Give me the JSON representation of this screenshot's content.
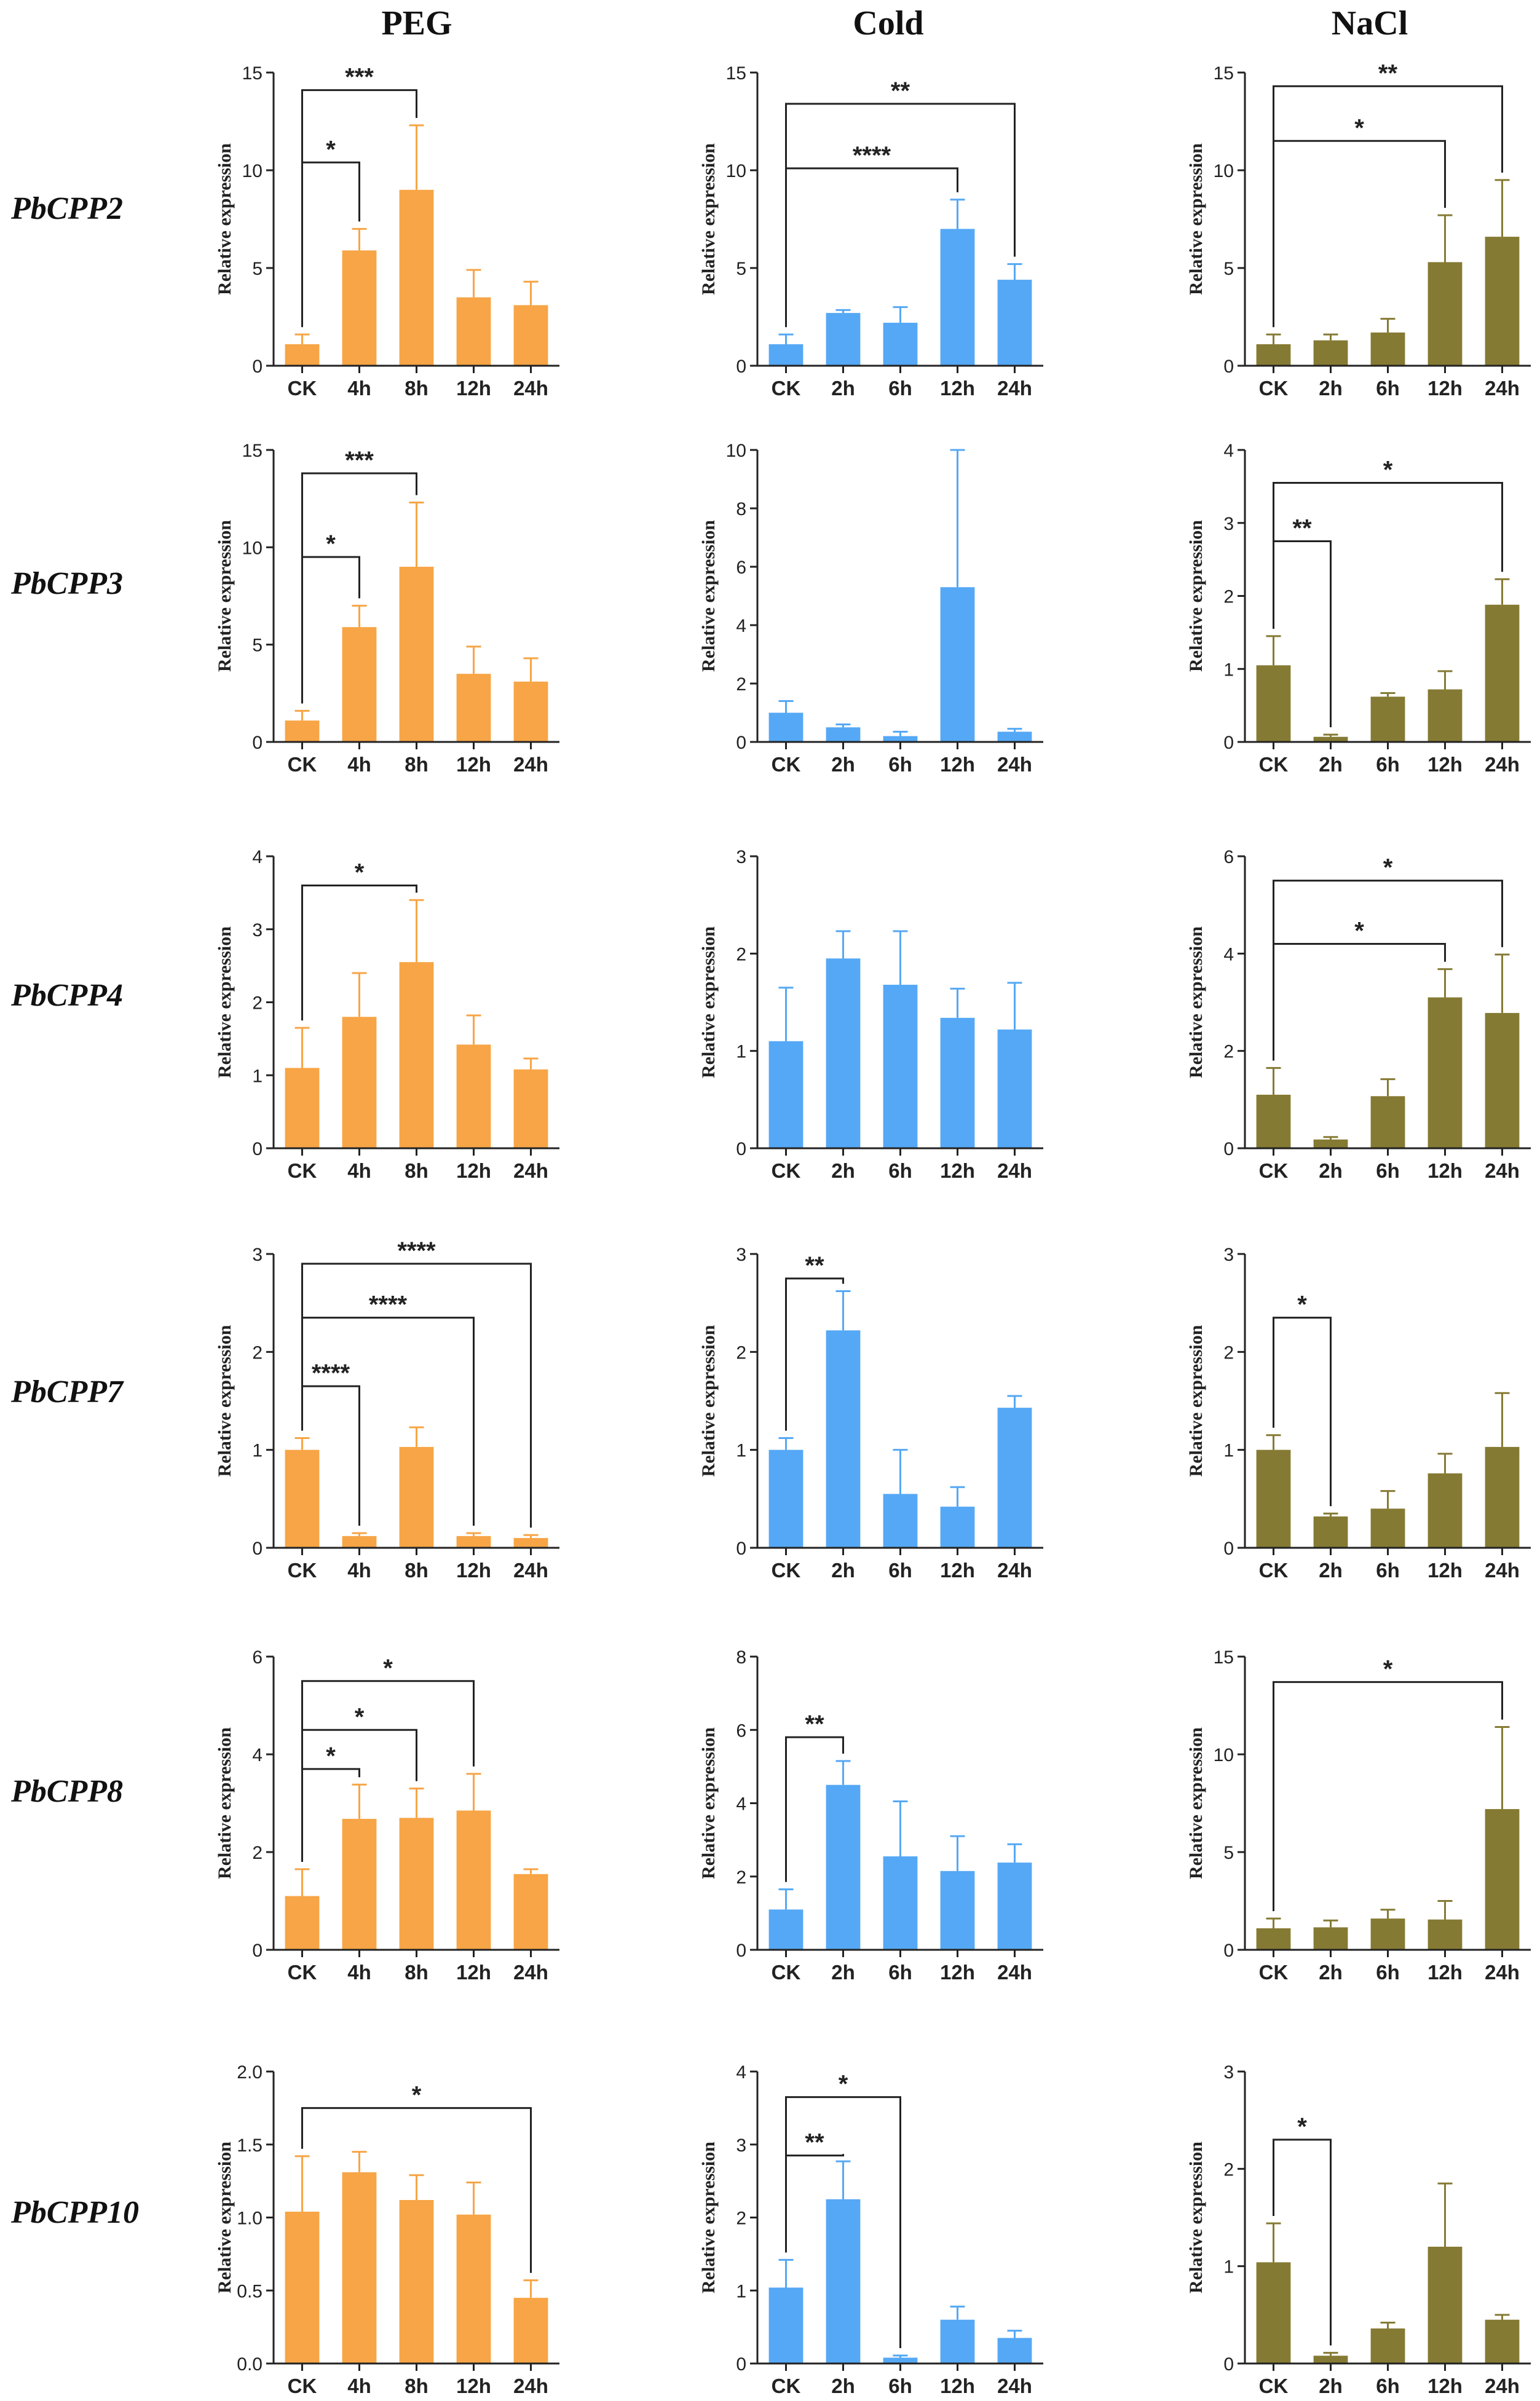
{
  "columns": [
    "PEG",
    "Cold",
    "NaCl"
  ],
  "genes": [
    "PbCPP2",
    "PbCPP3",
    "PbCPP4",
    "PbCPP7",
    "PbCPP8",
    "PbCPP10"
  ],
  "colors": {
    "PEG": "#F7A546",
    "Cold": "#55A8F5",
    "NaCl": "#857A33"
  },
  "ylabel": "Relative expression",
  "chart_data": [
    {
      "type": "bar",
      "gene": "PbCPP2",
      "treatment": "PEG",
      "ylabel": "Relative expression",
      "categories": [
        "CK",
        "4h",
        "8h",
        "12h",
        "24h"
      ],
      "values": [
        1.1,
        5.9,
        9.0,
        3.5,
        3.1
      ],
      "errors": [
        0.5,
        1.1,
        3.3,
        1.4,
        1.2
      ],
      "ylim": [
        0,
        15
      ],
      "yticks": [
        0,
        5,
        10,
        15
      ],
      "yticklabels": [
        "0",
        "5",
        "10",
        "15"
      ],
      "significance": [
        {
          "from": "CK",
          "to": "4h",
          "label": "*",
          "level": 10.4
        },
        {
          "from": "CK",
          "to": "8h",
          "label": "***",
          "level": 14.1
        }
      ]
    },
    {
      "type": "bar",
      "gene": "PbCPP2",
      "treatment": "Cold",
      "ylabel": "Relative expression",
      "categories": [
        "CK",
        "2h",
        "6h",
        "12h",
        "24h"
      ],
      "values": [
        1.1,
        2.7,
        2.2,
        7.0,
        4.4
      ],
      "errors": [
        0.5,
        0.15,
        0.8,
        1.5,
        0.8
      ],
      "ylim": [
        0,
        15
      ],
      "yticks": [
        0,
        5,
        10,
        15
      ],
      "yticklabels": [
        "0",
        "5",
        "10",
        "15"
      ],
      "significance": [
        {
          "from": "CK",
          "to": "12h",
          "label": "****",
          "level": 10.1
        },
        {
          "from": "CK",
          "to": "24h",
          "label": "**",
          "level": 13.4
        }
      ]
    },
    {
      "type": "bar",
      "gene": "PbCPP2",
      "treatment": "NaCl",
      "ylabel": "Relative expression",
      "categories": [
        "CK",
        "2h",
        "6h",
        "12h",
        "24h"
      ],
      "values": [
        1.1,
        1.3,
        1.7,
        5.3,
        6.6
      ],
      "errors": [
        0.5,
        0.3,
        0.7,
        2.4,
        2.9
      ],
      "ylim": [
        0,
        15
      ],
      "yticks": [
        0,
        5,
        10,
        15
      ],
      "yticklabels": [
        "0",
        "5",
        "10",
        "15"
      ],
      "significance": [
        {
          "from": "CK",
          "to": "12h",
          "label": "*",
          "level": 11.5
        },
        {
          "from": "CK",
          "to": "24h",
          "label": "**",
          "level": 14.3
        }
      ]
    },
    {
      "type": "bar",
      "gene": "PbCPP3",
      "treatment": "PEG",
      "ylabel": "Relative expression",
      "categories": [
        "CK",
        "4h",
        "8h",
        "12h",
        "24h"
      ],
      "values": [
        1.1,
        5.9,
        9.0,
        3.5,
        3.1
      ],
      "errors": [
        0.5,
        1.1,
        3.3,
        1.4,
        1.2
      ],
      "ylim": [
        0,
        15
      ],
      "yticks": [
        0,
        5,
        10,
        15
      ],
      "yticklabels": [
        "0",
        "5",
        "10",
        "15"
      ],
      "significance": [
        {
          "from": "CK",
          "to": "4h",
          "label": "*",
          "level": 9.5
        },
        {
          "from": "CK",
          "to": "8h",
          "label": "***",
          "level": 13.8
        }
      ]
    },
    {
      "type": "bar",
      "gene": "PbCPP3",
      "treatment": "Cold",
      "ylabel": "Relative expression",
      "categories": [
        "CK",
        "2h",
        "6h",
        "12h",
        "24h"
      ],
      "values": [
        1.0,
        0.5,
        0.2,
        5.3,
        0.35
      ],
      "errors": [
        0.4,
        0.1,
        0.15,
        4.7,
        0.1
      ],
      "ylim": [
        0,
        10
      ],
      "yticks": [
        0,
        2,
        4,
        6,
        8,
        10
      ],
      "yticklabels": [
        "0",
        "2",
        "4",
        "6",
        "8",
        "10"
      ],
      "significance": []
    },
    {
      "type": "bar",
      "gene": "PbCPP3",
      "treatment": "NaCl",
      "ylabel": "Relative expression",
      "categories": [
        "CK",
        "2h",
        "6h",
        "12h",
        "24h"
      ],
      "values": [
        1.05,
        0.07,
        0.62,
        0.72,
        1.88
      ],
      "errors": [
        0.4,
        0.03,
        0.05,
        0.25,
        0.35
      ],
      "ylim": [
        0,
        4
      ],
      "yticks": [
        0,
        1,
        2,
        3,
        4
      ],
      "yticklabels": [
        "0",
        "1",
        "2",
        "3",
        "4"
      ],
      "significance": [
        {
          "from": "CK",
          "to": "2h",
          "label": "**",
          "level": 2.75
        },
        {
          "from": "CK",
          "to": "24h",
          "label": "*",
          "level": 3.55
        }
      ]
    },
    {
      "type": "bar",
      "gene": "PbCPP4",
      "treatment": "PEG",
      "ylabel": "Relative expression",
      "categories": [
        "CK",
        "4h",
        "8h",
        "12h",
        "24h"
      ],
      "values": [
        1.1,
        1.8,
        2.55,
        1.42,
        1.08
      ],
      "errors": [
        0.55,
        0.6,
        0.85,
        0.4,
        0.15
      ],
      "ylim": [
        0,
        4
      ],
      "yticks": [
        0,
        1,
        2,
        3,
        4
      ],
      "yticklabels": [
        "0",
        "1",
        "2",
        "3",
        "4"
      ],
      "significance": [
        {
          "from": "CK",
          "to": "8h",
          "label": "*",
          "level": 3.6
        }
      ]
    },
    {
      "type": "bar",
      "gene": "PbCPP4",
      "treatment": "Cold",
      "ylabel": "Relative expression",
      "categories": [
        "CK",
        "2h",
        "6h",
        "12h",
        "24h"
      ],
      "values": [
        1.1,
        1.95,
        1.68,
        1.34,
        1.22
      ],
      "errors": [
        0.55,
        0.28,
        0.55,
        0.3,
        0.48
      ],
      "ylim": [
        0,
        3
      ],
      "yticks": [
        0,
        1,
        2,
        3
      ],
      "yticklabels": [
        "0",
        "1",
        "2",
        "3"
      ],
      "significance": []
    },
    {
      "type": "bar",
      "gene": "PbCPP4",
      "treatment": "NaCl",
      "ylabel": "Relative expression",
      "categories": [
        "CK",
        "2h",
        "6h",
        "12h",
        "24h"
      ],
      "values": [
        1.1,
        0.18,
        1.07,
        3.1,
        2.78
      ],
      "errors": [
        0.55,
        0.05,
        0.35,
        0.58,
        1.2
      ],
      "ylim": [
        0,
        6
      ],
      "yticks": [
        0,
        2,
        4,
        6
      ],
      "yticklabels": [
        "0",
        "2",
        "4",
        "6"
      ],
      "significance": [
        {
          "from": "CK",
          "to": "12h",
          "label": "*",
          "level": 4.2
        },
        {
          "from": "CK",
          "to": "24h",
          "label": "*",
          "level": 5.5
        }
      ]
    },
    {
      "type": "bar",
      "gene": "PbCPP7",
      "treatment": "PEG",
      "ylabel": "Relative expression",
      "categories": [
        "CK",
        "4h",
        "8h",
        "12h",
        "24h"
      ],
      "values": [
        1.0,
        0.12,
        1.03,
        0.12,
        0.1
      ],
      "errors": [
        0.12,
        0.03,
        0.2,
        0.03,
        0.03
      ],
      "ylim": [
        0,
        3
      ],
      "yticks": [
        0,
        1,
        2,
        3
      ],
      "yticklabels": [
        "0",
        "1",
        "2",
        "3"
      ],
      "significance": [
        {
          "from": "CK",
          "to": "4h",
          "label": "****",
          "level": 1.65
        },
        {
          "from": "CK",
          "to": "12h",
          "label": "****",
          "level": 2.35
        },
        {
          "from": "CK",
          "to": "24h",
          "label": "****",
          "level": 2.9
        }
      ]
    },
    {
      "type": "bar",
      "gene": "PbCPP7",
      "treatment": "Cold",
      "ylabel": "Relative expression",
      "categories": [
        "CK",
        "2h",
        "6h",
        "12h",
        "24h"
      ],
      "values": [
        1.0,
        2.22,
        0.55,
        0.42,
        1.43
      ],
      "errors": [
        0.12,
        0.4,
        0.45,
        0.2,
        0.12
      ],
      "ylim": [
        0,
        3
      ],
      "yticks": [
        0,
        1,
        2,
        3
      ],
      "yticklabels": [
        "0",
        "1",
        "2",
        "3"
      ],
      "significance": [
        {
          "from": "CK",
          "to": "2h",
          "label": "**",
          "level": 2.75
        }
      ]
    },
    {
      "type": "bar",
      "gene": "PbCPP7",
      "treatment": "NaCl",
      "ylabel": "Relative expression",
      "categories": [
        "CK",
        "2h",
        "6h",
        "12h",
        "24h"
      ],
      "values": [
        1.0,
        0.32,
        0.4,
        0.76,
        1.03
      ],
      "errors": [
        0.15,
        0.03,
        0.18,
        0.2,
        0.55
      ],
      "ylim": [
        0,
        3
      ],
      "yticks": [
        0,
        1,
        2,
        3
      ],
      "yticklabels": [
        "0",
        "1",
        "2",
        "3"
      ],
      "significance": [
        {
          "from": "CK",
          "to": "2h",
          "label": "*",
          "level": 2.35
        }
      ]
    },
    {
      "type": "bar",
      "gene": "PbCPP8",
      "treatment": "PEG",
      "ylabel": "Relative expression",
      "categories": [
        "CK",
        "4h",
        "8h",
        "12h",
        "24h"
      ],
      "values": [
        1.1,
        2.68,
        2.7,
        2.85,
        1.55
      ],
      "errors": [
        0.55,
        0.7,
        0.6,
        0.75,
        0.1
      ],
      "ylim": [
        0,
        6
      ],
      "yticks": [
        0,
        2,
        4,
        6
      ],
      "yticklabels": [
        "0",
        "2",
        "4",
        "6"
      ],
      "significance": [
        {
          "from": "CK",
          "to": "4h",
          "label": "*",
          "level": 3.7
        },
        {
          "from": "CK",
          "to": "8h",
          "label": "*",
          "level": 4.5
        },
        {
          "from": "CK",
          "to": "12h",
          "label": "*",
          "level": 5.5
        }
      ]
    },
    {
      "type": "bar",
      "gene": "PbCPP8",
      "treatment": "Cold",
      "ylabel": "Relative expression",
      "categories": [
        "CK",
        "2h",
        "6h",
        "12h",
        "24h"
      ],
      "values": [
        1.1,
        4.5,
        2.55,
        2.15,
        2.38
      ],
      "errors": [
        0.55,
        0.65,
        1.5,
        0.95,
        0.5
      ],
      "ylim": [
        0,
        8
      ],
      "yticks": [
        0,
        2,
        4,
        6,
        8
      ],
      "yticklabels": [
        "0",
        "2",
        "4",
        "6",
        "8"
      ],
      "significance": [
        {
          "from": "CK",
          "to": "2h",
          "label": "**",
          "level": 5.8
        }
      ]
    },
    {
      "type": "bar",
      "gene": "PbCPP8",
      "treatment": "NaCl",
      "ylabel": "Relative expression",
      "categories": [
        "CK",
        "2h",
        "6h",
        "12h",
        "24h"
      ],
      "values": [
        1.1,
        1.15,
        1.6,
        1.55,
        7.2
      ],
      "errors": [
        0.5,
        0.35,
        0.45,
        0.95,
        4.2
      ],
      "ylim": [
        0,
        15
      ],
      "yticks": [
        0,
        5,
        10,
        15
      ],
      "yticklabels": [
        "0",
        "5",
        "10",
        "15"
      ],
      "significance": [
        {
          "from": "CK",
          "to": "24h",
          "label": "*",
          "level": 13.7
        }
      ]
    },
    {
      "type": "bar",
      "gene": "PbCPP10",
      "treatment": "PEG",
      "ylabel": "Relative expression",
      "categories": [
        "CK",
        "4h",
        "8h",
        "12h",
        "24h"
      ],
      "values": [
        1.04,
        1.31,
        1.12,
        1.02,
        0.45
      ],
      "errors": [
        0.38,
        0.14,
        0.17,
        0.22,
        0.12
      ],
      "ylim": [
        0,
        2
      ],
      "yticks": [
        0,
        0.5,
        1,
        1.5,
        2
      ],
      "yticklabels": [
        "0.0",
        "0.5",
        "1.0",
        "1.5",
        "2.0"
      ],
      "significance": [
        {
          "from": "CK",
          "to": "24h",
          "label": "*",
          "level": 1.75
        }
      ]
    },
    {
      "type": "bar",
      "gene": "PbCPP10",
      "treatment": "Cold",
      "ylabel": "Relative expression",
      "categories": [
        "CK",
        "2h",
        "6h",
        "12h",
        "24h"
      ],
      "values": [
        1.04,
        2.25,
        0.08,
        0.6,
        0.35
      ],
      "errors": [
        0.38,
        0.52,
        0.03,
        0.18,
        0.1
      ],
      "ylim": [
        0,
        4
      ],
      "yticks": [
        0,
        1,
        2,
        3,
        4
      ],
      "yticklabels": [
        "0",
        "1",
        "2",
        "3",
        "4"
      ],
      "significance": [
        {
          "from": "CK",
          "to": "2h",
          "label": "**",
          "level": 2.85
        },
        {
          "from": "CK",
          "to": "6h",
          "label": "*",
          "level": 3.65
        }
      ]
    },
    {
      "type": "bar",
      "gene": "PbCPP10",
      "treatment": "NaCl",
      "ylabel": "Relative expression",
      "categories": [
        "CK",
        "2h",
        "6h",
        "12h",
        "24h"
      ],
      "values": [
        1.04,
        0.08,
        0.36,
        1.2,
        0.45
      ],
      "errors": [
        0.4,
        0.03,
        0.06,
        0.65,
        0.05
      ],
      "ylim": [
        0,
        3
      ],
      "yticks": [
        0,
        1,
        2,
        3
      ],
      "yticklabels": [
        "0",
        "1",
        "2",
        "3"
      ],
      "significance": [
        {
          "from": "CK",
          "to": "2h",
          "label": "*",
          "level": 2.3
        }
      ]
    }
  ]
}
